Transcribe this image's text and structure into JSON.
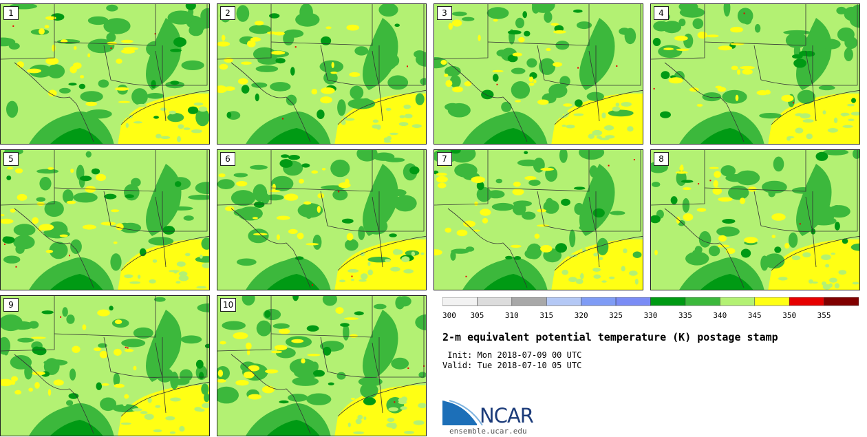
{
  "stamps": [
    {
      "label": "1"
    },
    {
      "label": "2"
    },
    {
      "label": "3"
    },
    {
      "label": "4"
    },
    {
      "label": "5"
    },
    {
      "label": "6"
    },
    {
      "label": "7"
    },
    {
      "label": "8"
    },
    {
      "label": "9"
    },
    {
      "label": "10"
    }
  ],
  "colorbar": {
    "ticks": [
      "300",
      "305",
      "310",
      "315",
      "320",
      "325",
      "330",
      "335",
      "340",
      "345",
      "350",
      "355"
    ],
    "colors": [
      "#f2f2f2",
      "#dcdcdc",
      "#a8a8a8",
      "#b4c8f5",
      "#7f9cf5",
      "#7a8cf5",
      "#009a14",
      "#3cb83c",
      "#b3f173",
      "#ffff14",
      "#e60000",
      "#800000"
    ]
  },
  "title": "2-m equivalent potential temperature (K) postage stamp",
  "init_line": " Init: Mon 2018-07-09 00 UTC",
  "valid_line": "Valid: Tue 2018-07-10 05 UTC",
  "logo": {
    "name": "NCAR",
    "url": "ensemble.ucar.edu"
  },
  "map_colors": {
    "land_base": "#b3f173",
    "green_mid": "#3cb83c",
    "green_dark": "#009a14",
    "yellow": "#ffff14",
    "red": "#e60000",
    "border_line": "#333333"
  }
}
